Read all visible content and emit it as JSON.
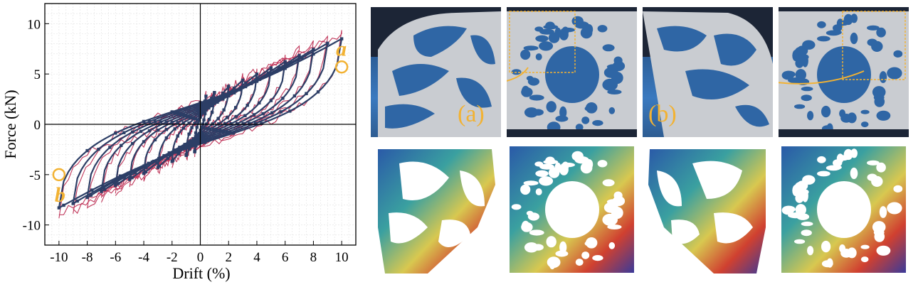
{
  "chart_data": {
    "type": "line",
    "title": "",
    "xlabel": "Drift (%)",
    "ylabel": "Force (kN)",
    "xlim": [
      -11,
      11
    ],
    "ylim": [
      -12,
      12
    ],
    "xticks": [
      "-10",
      "-8",
      "-6",
      "-4",
      "-2",
      "0",
      "2",
      "4",
      "6",
      "8",
      "10"
    ],
    "yticks": [
      "10",
      "5",
      "0",
      "-5",
      "-10"
    ],
    "grid": true,
    "drift_amplitudes": [
      0.4,
      1.0,
      2.0,
      3.0,
      4.0,
      5.0,
      6.0,
      7.0,
      8.0,
      9.0,
      10.0
    ],
    "series": [
      {
        "color": "#c0365a",
        "style": "experimental",
        "peak_positive_force": 9.0,
        "peak_negative_force": -9.0
      },
      {
        "color": "#2c3e66",
        "style": "simulated-with-markers",
        "peak_positive_force": 8.5,
        "peak_negative_force": -8.3
      }
    ],
    "annotations": [
      {
        "label": "a",
        "x": 10.0,
        "y": 5.7,
        "color": "#f2b233"
      },
      {
        "label": "b",
        "x": -10.0,
        "y": -5.0,
        "color": "#f2b233"
      }
    ]
  },
  "photos": {
    "label_a": "(a)",
    "label_b": "(b)"
  },
  "colors": {
    "accent": "#f2b233",
    "experimental": "#c0365a",
    "simulated": "#2c3e66",
    "photo_background": "#2f6aa8"
  }
}
